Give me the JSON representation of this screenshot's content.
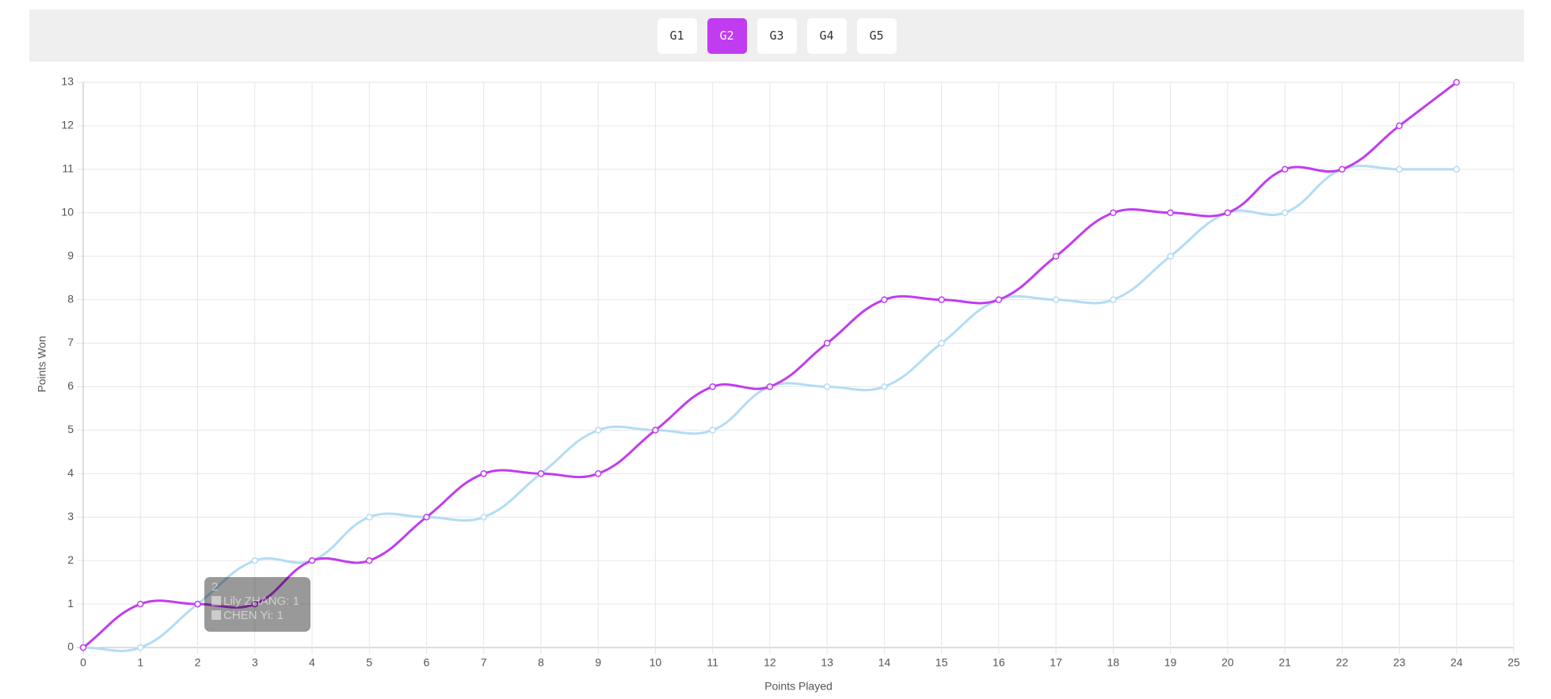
{
  "buttons": [
    "G1",
    "G2",
    "G3",
    "G4",
    "G5"
  ],
  "active_button": 1,
  "chart_data": {
    "type": "line",
    "xlabel": "Points Played",
    "ylabel": "Points Won",
    "x": [
      0,
      1,
      2,
      3,
      4,
      5,
      6,
      7,
      8,
      9,
      10,
      11,
      12,
      13,
      14,
      15,
      16,
      17,
      18,
      19,
      20,
      21,
      22,
      23,
      24
    ],
    "series": [
      {
        "name": "Lily ZHANG",
        "color": "#c13cf0",
        "values": [
          0,
          1,
          1,
          1,
          2,
          2,
          3,
          4,
          4,
          4,
          5,
          6,
          6,
          7,
          8,
          8,
          8,
          9,
          10,
          10,
          10,
          11,
          11,
          12,
          13
        ]
      },
      {
        "name": "CHEN Yi",
        "color": "#b3dcf5",
        "values": [
          0,
          0,
          1,
          2,
          2,
          3,
          3,
          3,
          4,
          5,
          5,
          5,
          6,
          6,
          6,
          7,
          8,
          8,
          8,
          9,
          10,
          10,
          11,
          11,
          11
        ]
      }
    ],
    "xlim": [
      0,
      25
    ],
    "xticks": [
      0,
      1,
      2,
      3,
      4,
      5,
      6,
      7,
      8,
      9,
      10,
      11,
      12,
      13,
      14,
      15,
      16,
      17,
      18,
      19,
      20,
      21,
      22,
      23,
      24,
      25
    ],
    "ylim": [
      0,
      13
    ],
    "yticks": [
      0,
      1,
      2,
      3,
      4,
      5,
      6,
      7,
      8,
      9,
      10,
      11,
      12,
      13
    ],
    "grid": true,
    "tooltip": {
      "title": "2",
      "items": [
        "Lily ZHANG: 1",
        "CHEN Yi: 1"
      ]
    }
  }
}
